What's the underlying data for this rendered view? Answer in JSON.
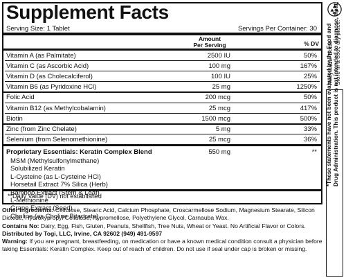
{
  "panel": {
    "title": "Supplement Facts",
    "serving_size": "Serving Size: 1 Tablet",
    "servings_per_container": "Servings Per Container: 30",
    "amount_header_line1": "Amount",
    "amount_header_line2": "Per Serving",
    "dv_header": "% DV",
    "nutrients": [
      {
        "name": "Vitamin A (as Palmitate)",
        "amount": "2500 IU",
        "dv": "50%"
      },
      {
        "name": "Vitamin C (as Ascorbic Acid)",
        "amount": "100 mg",
        "dv": "167%"
      },
      {
        "name": "Vitamin D (as Cholecalciferol)",
        "amount": "100 IU",
        "dv": "25%"
      },
      {
        "name": "Vitamin B6 (as Pyridoxine HCl)",
        "amount": "25 mg",
        "dv": "1250%"
      },
      {
        "name": "Folic Acid",
        "amount": "200 mcg",
        "dv": "50%"
      },
      {
        "name": "Vitamin B12 (as Methylcobalamin)",
        "amount": "25 mcg",
        "dv": "417%"
      },
      {
        "name": "Biotin",
        "amount": "1500 mcg",
        "dv": "500%"
      },
      {
        "name": "Zinc (from Zinc Chelate)",
        "amount": "5 mg",
        "dv": "33%"
      },
      {
        "name": "Selenium (from Selenomethionine)",
        "amount": "25 mcg",
        "dv": "36%"
      }
    ],
    "blend": {
      "name": "Proprietary Essentials: Keratin Complex Blend",
      "amount": "550 mg",
      "dv": "**",
      "ingredients": [
        "MSM (Methylsulfonylmethane)",
        "Solubilized Keratin",
        "L-Cysteine (as L-Cysteine HCl)",
        "Horsetail Extract 7% Silica (Herb)",
        "Bamboo Extract (Stem & Leaf)",
        "L-Methionine",
        "Grape Extract (Seed)",
        "Choline (as Choline Bitartrate)"
      ]
    },
    "footnote": "**Daily Value (DV) not established"
  },
  "below": {
    "other_label": "Other Ingredients:",
    "other_text": " Cellulose, Stearic Acid, Calcium Phosphate, Croscarmellose Sodium, Magnesium Stearate, Silicon Dioxide, Hydroxypropyl Cellulose, Hypromellose, Polyethylene Glycol, Carnauba Wax.",
    "contains_label": "Contains No:",
    "contains_text": " Dairy, Egg, Fish, Gluten, Peanuts, Shellfish, Tree Nuts, Wheat or Yeast. No Artificial Flavor or Colors.",
    "distributed": "Distributed by Togi, LLC, Irvine, CA 92602 (949) 491-9597",
    "warning_label": "Warning:",
    "warning_text": " If you are pregnant, breastfeeding, on medication or have a known medical condition consult a physician before taking Essentials: Keratin Complex. Keep out of reach of children. Do not use if seal under cap is broken or missing."
  },
  "side": {
    "icon": "recycle-icon",
    "recyclable": "Recyclable Bottle",
    "store": "Store in a cool, dry place.",
    "fda_line1": "*These statements have not been evaluated by the Food and",
    "fda_line2": "Drug Administration. This product is not intended to diagnose, treat, cure or prevent any disease."
  }
}
